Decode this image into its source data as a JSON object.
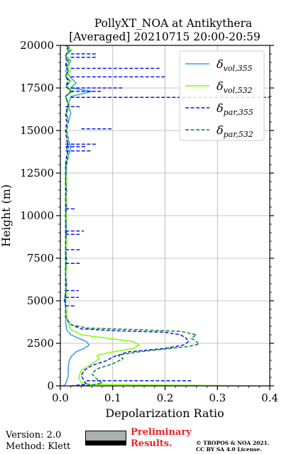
{
  "chart_data": {
    "type": "line",
    "title": "PollyXT_NOA at Antikythera",
    "subtitle": "[Averaged] 20210715 20:00-20:59",
    "xlabel": "Depolarization Ratio",
    "ylabel": "Height (m)",
    "xlim": [
      0,
      0.4
    ],
    "ylim": [
      0,
      20000
    ],
    "xticks": [
      "0.0",
      "0.1",
      "0.2",
      "0.3",
      "0.4"
    ],
    "yticks": [
      "0",
      "2500",
      "5000",
      "7500",
      "10000",
      "12500",
      "15000",
      "17500",
      "20000"
    ],
    "grid": true,
    "legend_position": "top-right",
    "series": [
      {
        "name": "δ_vol,355",
        "label_main": "δ",
        "label_sub": "vol,355",
        "color": "#3a9ee4",
        "dash": "solid",
        "points": [
          [
            0.005,
            0
          ],
          [
            0.01,
            100
          ],
          [
            0.012,
            300
          ],
          [
            0.015,
            600
          ],
          [
            0.015,
            1000
          ],
          [
            0.016,
            1400
          ],
          [
            0.02,
            1700
          ],
          [
            0.03,
            2000
          ],
          [
            0.045,
            2200
          ],
          [
            0.055,
            2400
          ],
          [
            0.05,
            2600
          ],
          [
            0.035,
            2800
          ],
          [
            0.02,
            3000
          ],
          [
            0.012,
            3300
          ],
          [
            0.01,
            3800
          ],
          [
            0.012,
            4300
          ],
          [
            0.01,
            4700
          ],
          [
            0.008,
            5000
          ],
          [
            0.01,
            5500
          ],
          [
            0.012,
            6000
          ],
          [
            0.01,
            6500
          ],
          [
            0.01,
            7000
          ],
          [
            0.012,
            7500
          ],
          [
            0.01,
            8000
          ],
          [
            0.012,
            8500
          ],
          [
            0.01,
            9000
          ],
          [
            0.012,
            9500
          ],
          [
            0.01,
            10000
          ],
          [
            0.012,
            10500
          ],
          [
            0.01,
            11000
          ],
          [
            0.012,
            11500
          ],
          [
            0.01,
            12000
          ],
          [
            0.012,
            12500
          ],
          [
            0.01,
            13000
          ],
          [
            0.015,
            13500
          ],
          [
            0.02,
            14000
          ],
          [
            0.015,
            14500
          ],
          [
            0.012,
            15000
          ],
          [
            0.015,
            15500
          ],
          [
            0.02,
            16000
          ],
          [
            0.015,
            16500
          ],
          [
            0.02,
            17000
          ],
          [
            0.06,
            17300
          ],
          [
            0.02,
            17500
          ],
          [
            0.03,
            17800
          ],
          [
            0.02,
            18100
          ],
          [
            0.01,
            18500
          ],
          [
            0.015,
            18800
          ],
          [
            0.02,
            19100
          ],
          [
            0.01,
            19400
          ],
          [
            0.02,
            19700
          ],
          [
            0.015,
            20000
          ]
        ]
      },
      {
        "name": "δ_vol,532",
        "label_main": "δ",
        "label_sub": "vol,532",
        "color": "#7fff00",
        "dash": "solid",
        "points": [
          [
            0.4,
            0
          ],
          [
            0.06,
            80
          ],
          [
            0.04,
            200
          ],
          [
            0.035,
            500
          ],
          [
            0.04,
            900
          ],
          [
            0.06,
            1300
          ],
          [
            0.075,
            1600
          ],
          [
            0.07,
            1800
          ],
          [
            0.1,
            2000
          ],
          [
            0.14,
            2200
          ],
          [
            0.15,
            2400
          ],
          [
            0.14,
            2600
          ],
          [
            0.09,
            2800
          ],
          [
            0.04,
            3000
          ],
          [
            0.02,
            3300
          ],
          [
            0.015,
            3700
          ],
          [
            0.012,
            4200
          ],
          [
            0.01,
            4700
          ],
          [
            0.01,
            5000
          ],
          [
            0.012,
            5500
          ],
          [
            0.01,
            6000
          ],
          [
            0.01,
            6500
          ],
          [
            0.012,
            7000
          ],
          [
            0.01,
            7500
          ],
          [
            0.01,
            8000
          ],
          [
            0.012,
            8500
          ],
          [
            0.01,
            9000
          ],
          [
            0.01,
            9500
          ],
          [
            0.012,
            10000
          ],
          [
            0.01,
            10500
          ],
          [
            0.012,
            11000
          ],
          [
            0.01,
            11500
          ],
          [
            0.012,
            12000
          ],
          [
            0.01,
            12500
          ],
          [
            0.012,
            13000
          ],
          [
            0.015,
            13500
          ],
          [
            0.012,
            14000
          ],
          [
            0.015,
            14500
          ],
          [
            0.012,
            15000
          ],
          [
            0.015,
            15500
          ],
          [
            0.012,
            16000
          ],
          [
            0.018,
            16500
          ],
          [
            0.01,
            17000
          ],
          [
            0.025,
            17300
          ],
          [
            0.012,
            17600
          ],
          [
            0.02,
            17900
          ],
          [
            0.01,
            18200
          ],
          [
            0.02,
            18500
          ],
          [
            0.012,
            18800
          ],
          [
            0.018,
            19100
          ],
          [
            0.01,
            19400
          ],
          [
            0.022,
            19700
          ],
          [
            0.012,
            20000
          ]
        ]
      },
      {
        "name": "δ_par,355",
        "label_main": "δ",
        "label_sub": "par,355",
        "color": "#0a1adf",
        "dash": "dashed",
        "points": [
          [
            0.02,
            0
          ],
          [
            0.05,
            100
          ],
          [
            0.045,
            300
          ],
          [
            0.04,
            600
          ],
          [
            0.045,
            900
          ],
          [
            0.06,
            1200
          ],
          [
            0.09,
            1500
          ],
          [
            0.1,
            1700
          ],
          [
            0.13,
            2000
          ],
          [
            0.2,
            2200
          ],
          [
            0.235,
            2400
          ],
          [
            0.245,
            2600
          ],
          [
            0.24,
            2800
          ],
          [
            0.23,
            3000
          ],
          [
            0.2,
            3150
          ],
          [
            0.1,
            3250
          ],
          [
            0.04,
            3350
          ],
          [
            0.02,
            3600
          ],
          [
            0.01,
            4000
          ],
          [
            0.01,
            4700
          ],
          [
            0.008,
            5000
          ],
          [
            0.01,
            5500
          ],
          [
            0.01,
            6000
          ],
          [
            0.01,
            6500
          ],
          [
            0.01,
            7000
          ],
          [
            0.01,
            7500
          ],
          [
            0.01,
            8000
          ],
          [
            0.01,
            8500
          ],
          [
            0.01,
            9000
          ],
          [
            0.01,
            9500
          ],
          [
            0.01,
            10000
          ],
          [
            0.01,
            10500
          ],
          [
            0.01,
            11000
          ],
          [
            0.01,
            11500
          ],
          [
            0.01,
            12000
          ],
          [
            0.01,
            12500
          ],
          [
            0.01,
            13000
          ],
          [
            0.012,
            13500
          ],
          [
            0.015,
            14000
          ],
          [
            0.012,
            14500
          ],
          [
            0.01,
            15000
          ],
          [
            0.012,
            15500
          ],
          [
            0.01,
            16000
          ],
          [
            0.015,
            16500
          ],
          [
            0.01,
            17000
          ],
          [
            0.02,
            17300
          ],
          [
            0.01,
            17600
          ],
          [
            0.015,
            17900
          ],
          [
            0.01,
            18200
          ],
          [
            0.015,
            18500
          ],
          [
            0.01,
            18800
          ],
          [
            0.012,
            19100
          ],
          [
            0.01,
            19400
          ],
          [
            0.015,
            19700
          ],
          [
            0.01,
            20000
          ]
        ]
      },
      {
        "name": "δ_par,532",
        "label_main": "δ",
        "label_sub": "par,532",
        "color": "#0c8040",
        "dash": "dashed",
        "points": [
          [
            0.04,
            0
          ],
          [
            0.08,
            150
          ],
          [
            0.07,
            400
          ],
          [
            0.06,
            700
          ],
          [
            0.07,
            1000
          ],
          [
            0.1,
            1300
          ],
          [
            0.12,
            1600
          ],
          [
            0.11,
            1800
          ],
          [
            0.15,
            2000
          ],
          [
            0.24,
            2300
          ],
          [
            0.265,
            2450
          ],
          [
            0.26,
            2600
          ],
          [
            0.25,
            2800
          ],
          [
            0.26,
            3000
          ],
          [
            0.23,
            3200
          ],
          [
            0.15,
            3300
          ],
          [
            0.05,
            3400
          ],
          [
            0.02,
            3600
          ],
          [
            0.01,
            4000
          ],
          [
            0.01,
            4700
          ],
          [
            0.01,
            5000
          ],
          [
            0.01,
            5500
          ],
          [
            0.012,
            6000
          ],
          [
            0.01,
            6500
          ],
          [
            0.01,
            7000
          ],
          [
            0.012,
            7500
          ],
          [
            0.01,
            8000
          ],
          [
            0.01,
            8500
          ],
          [
            0.012,
            9000
          ],
          [
            0.01,
            9500
          ],
          [
            0.01,
            10000
          ],
          [
            0.012,
            10500
          ],
          [
            0.01,
            11000
          ],
          [
            0.012,
            11500
          ],
          [
            0.01,
            12000
          ],
          [
            0.01,
            12500
          ],
          [
            0.012,
            13000
          ],
          [
            0.015,
            13500
          ],
          [
            0.012,
            14000
          ],
          [
            0.015,
            14500
          ],
          [
            0.012,
            15000
          ],
          [
            0.015,
            15500
          ],
          [
            0.012,
            16000
          ],
          [
            0.015,
            16500
          ],
          [
            0.01,
            17000
          ],
          [
            0.02,
            17300
          ],
          [
            0.012,
            17600
          ],
          [
            0.018,
            17900
          ],
          [
            0.01,
            18200
          ],
          [
            0.015,
            18500
          ],
          [
            0.012,
            18800
          ],
          [
            0.015,
            19100
          ],
          [
            0.01,
            19400
          ],
          [
            0.018,
            19700
          ],
          [
            0.012,
            20000
          ]
        ]
      }
    ],
    "spikes": [
      {
        "color": "#0a1adf",
        "x0": 0.02,
        "x1": 0.4,
        "y": 16950
      },
      {
        "color": "#0a1adf",
        "x0": 0.02,
        "x1": 0.08,
        "y": 17300
      },
      {
        "color": "#0a1adf",
        "x0": 0.02,
        "x1": 0.12,
        "y": 17500
      },
      {
        "color": "#0a1adf",
        "x0": 0.02,
        "x1": 0.2,
        "y": 18150
      },
      {
        "color": "#0a1adf",
        "x0": 0.02,
        "x1": 0.19,
        "y": 18650
      },
      {
        "color": "#0a1adf",
        "x0": 0.02,
        "x1": 0.07,
        "y": 19300
      },
      {
        "color": "#0a1adf",
        "x0": 0.02,
        "x1": 0.07,
        "y": 19500
      },
      {
        "color": "#0a1adf",
        "x0": 0.01,
        "x1": 0.04,
        "y": 16400
      },
      {
        "color": "#0a1adf",
        "x0": 0.01,
        "x1": 0.07,
        "y": 14200
      },
      {
        "color": "#0a1adf",
        "x0": 0.01,
        "x1": 0.06,
        "y": 13800
      },
      {
        "color": "#0a1adf",
        "x0": 0.01,
        "x1": 0.05,
        "y": 14050
      },
      {
        "color": "#0a1adf",
        "x0": 0.04,
        "x1": 0.1,
        "y": 15100
      },
      {
        "color": "#0a1adf",
        "x0": 0.14,
        "x1": 0.14,
        "y": 13700
      },
      {
        "color": "#0a1adf",
        "x0": 0.01,
        "x1": 0.04,
        "y": 8900
      },
      {
        "color": "#0a1adf",
        "x0": 0.01,
        "x1": 0.045,
        "y": 9100
      },
      {
        "color": "#0a1adf",
        "x0": 0.01,
        "x1": 0.04,
        "y": 8000
      },
      {
        "color": "#0a1adf",
        "x0": 0.01,
        "x1": 0.04,
        "y": 7200
      },
      {
        "color": "#0a1adf",
        "x0": 0.01,
        "x1": 0.035,
        "y": 5600
      },
      {
        "color": "#0a1adf",
        "x0": 0.01,
        "x1": 0.035,
        "y": 5200
      },
      {
        "color": "#0a1adf",
        "x0": 0.01,
        "x1": 0.03,
        "y": 4700
      },
      {
        "color": "#0a1adf",
        "x0": 0.05,
        "x1": 0.25,
        "y": 300
      },
      {
        "color": "#0a1adf",
        "x0": 0.01,
        "x1": 0.03,
        "y": 10400
      }
    ]
  },
  "footer": {
    "version": "Version: 2.0",
    "method": "Method: Klett",
    "preliminary_line1": "Preliminary",
    "preliminary_line2": "Results.",
    "copyright_line1": "© TROPOS & NOA 2021.",
    "copyright_line2": "CC BY SA 4.0 License."
  }
}
